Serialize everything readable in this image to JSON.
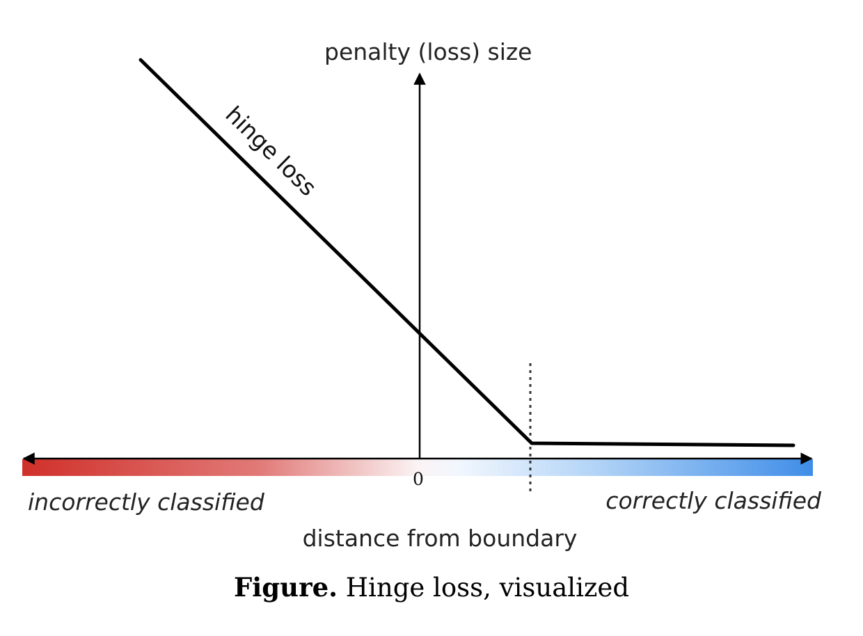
{
  "figure": {
    "y_axis_label": "penalty (loss) size",
    "x_axis_label": "distance from boundary",
    "curve_label": "hinge loss",
    "origin_tick": "0",
    "left_region_label": "incorrectly classified",
    "right_region_label": "correctly classified",
    "colors": {
      "incorrect": "#d0302a",
      "correct": "#3f8de8",
      "line": "#000000"
    }
  },
  "caption": {
    "prefix": "Figure.",
    "text": "Hinge loss, visualized"
  }
}
